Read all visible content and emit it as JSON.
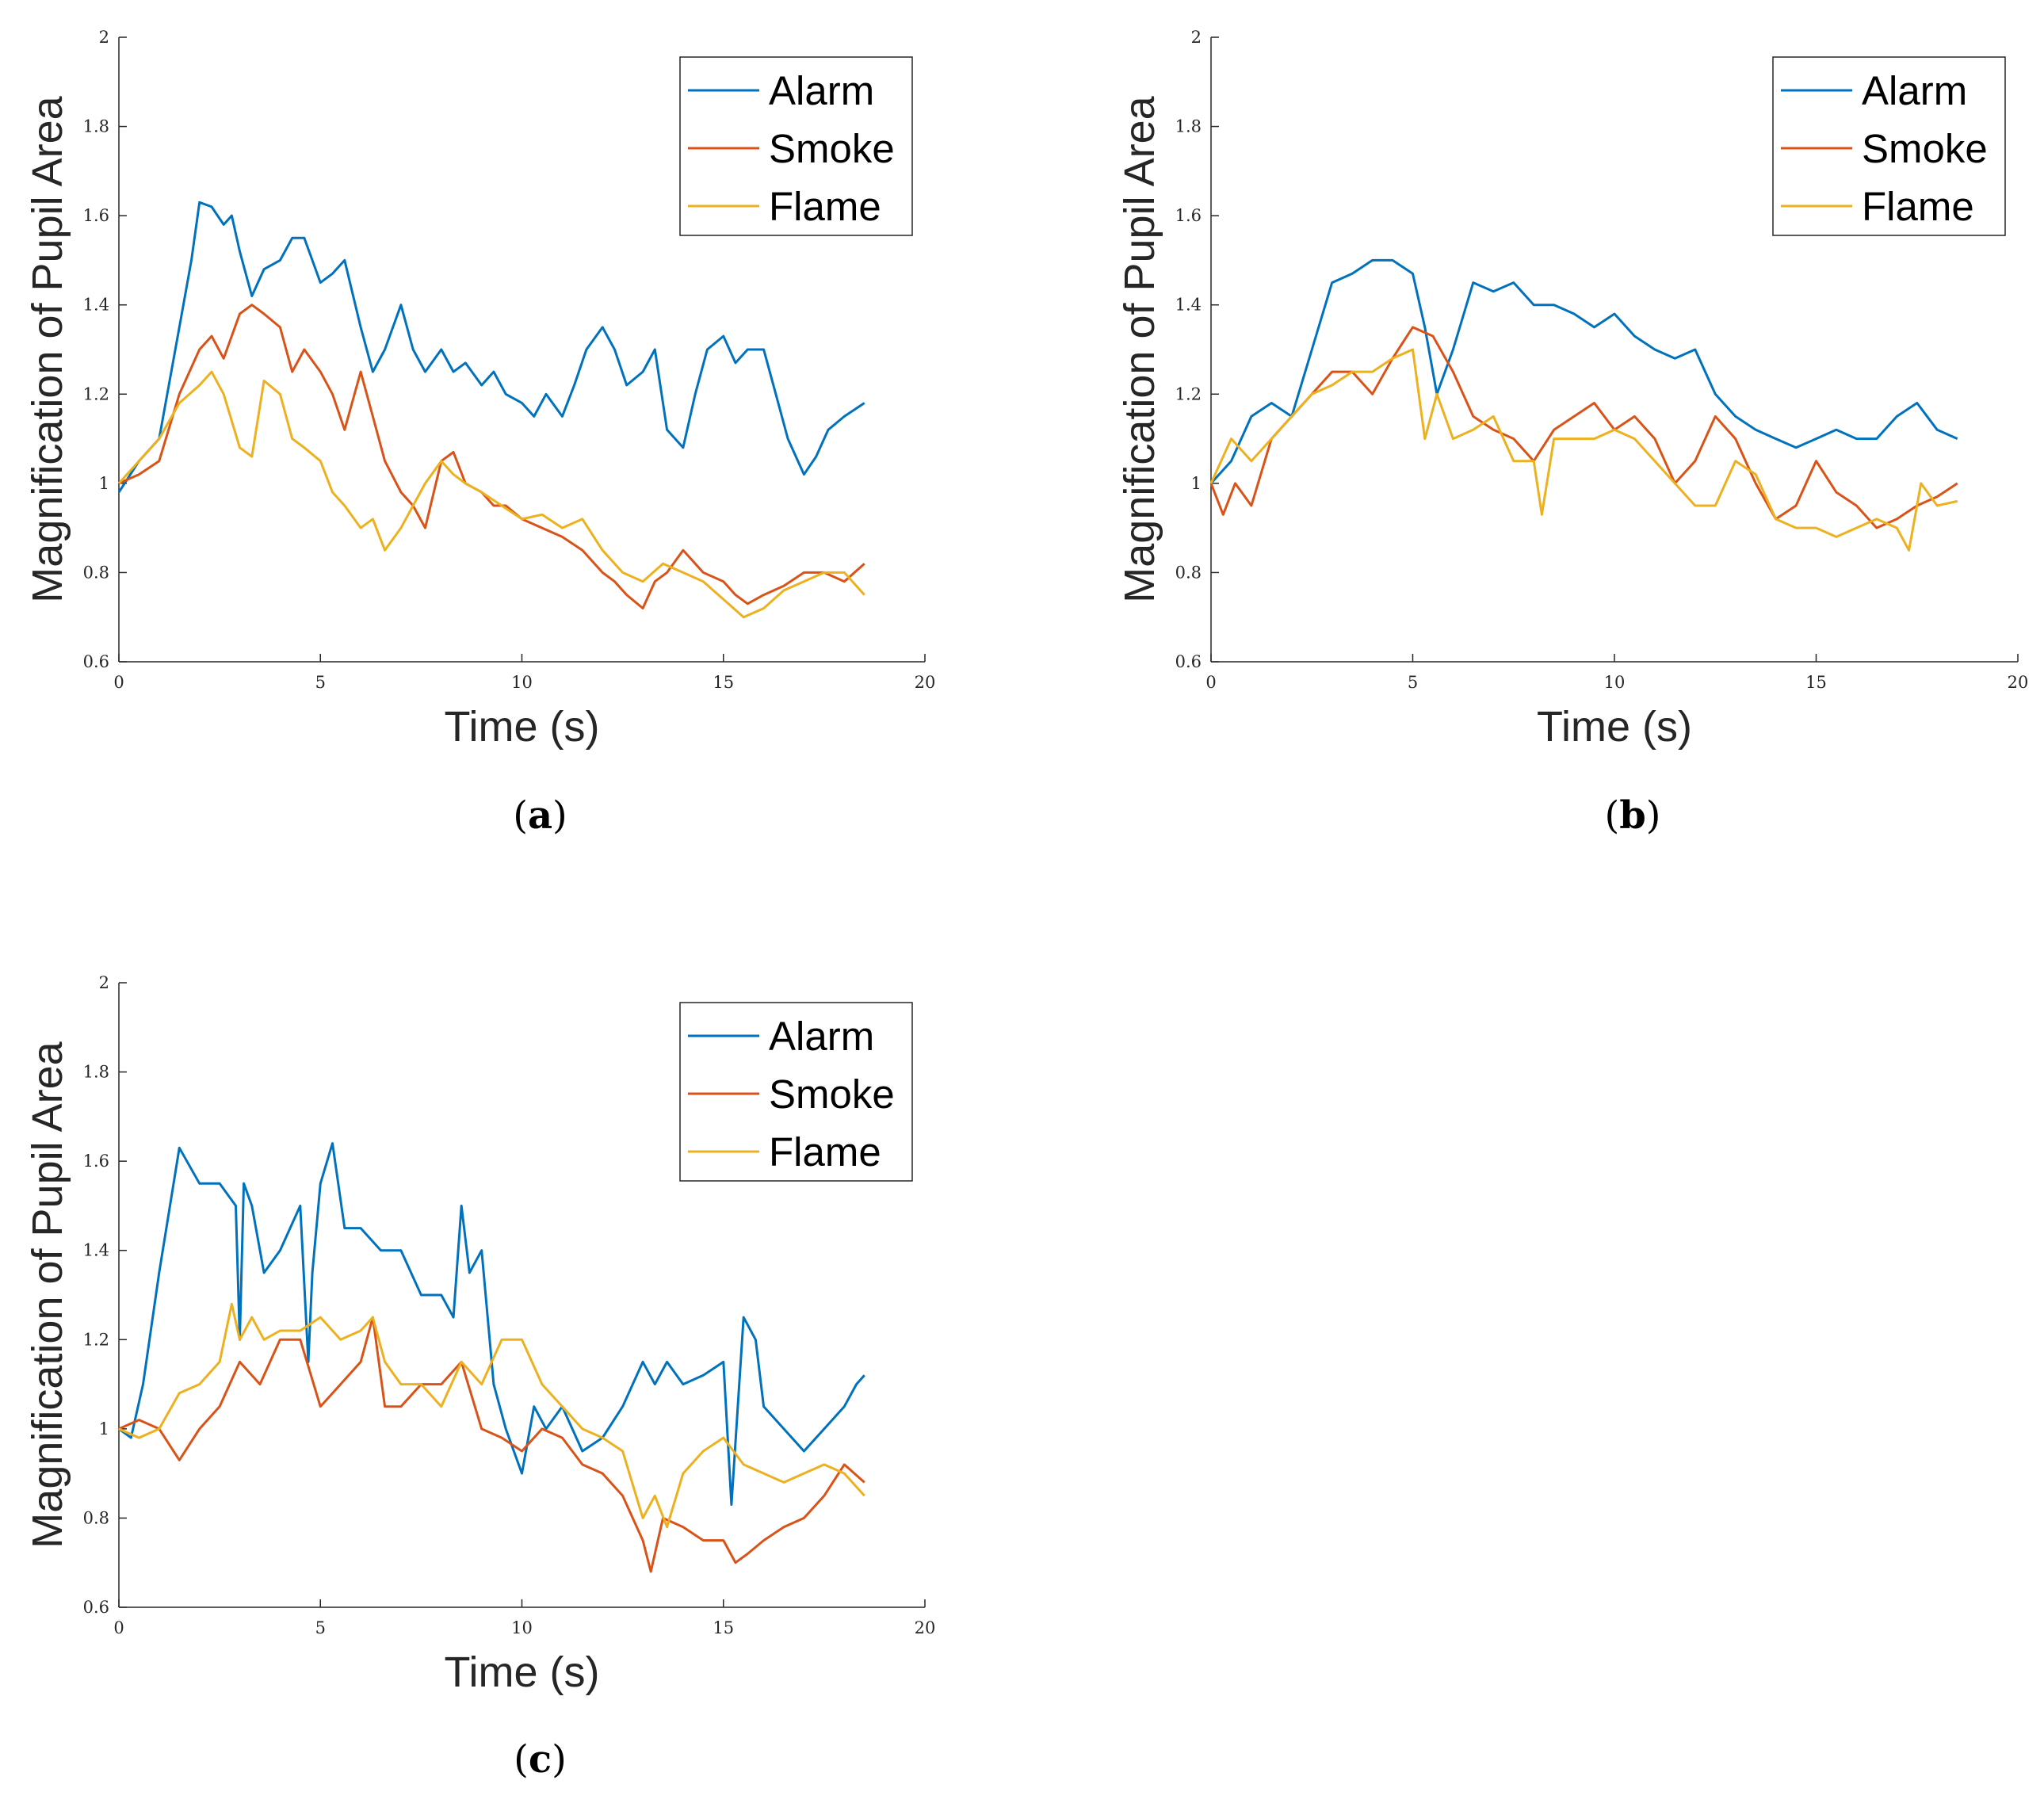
{
  "figure": {
    "colors": {
      "alarm": "#0072BD",
      "smoke": "#D95319",
      "flame": "#EDB120",
      "axis": "#262626"
    }
  },
  "chart_data": [
    {
      "panel": "a",
      "type": "line",
      "panel_label": {
        "open": "(",
        "letter": "a",
        "close": ")"
      },
      "xlabel": "Time (s)",
      "ylabel": "Magnification of Pupil Area",
      "xlim": [
        0,
        20
      ],
      "ylim": [
        0.6,
        2
      ],
      "xticks": [
        0,
        5,
        10,
        15,
        20
      ],
      "yticks": [
        0.6,
        0.8,
        1,
        1.2,
        1.4,
        1.6,
        1.8,
        2
      ],
      "legend": {
        "location": "top-right",
        "entries": [
          "Alarm",
          "Smoke",
          "Flame"
        ]
      },
      "series": [
        {
          "name": "Alarm",
          "color": "#0072BD",
          "x": [
            0,
            0.5,
            1,
            1.5,
            1.8,
            2,
            2.3,
            2.6,
            2.8,
            3,
            3.3,
            3.6,
            4,
            4.3,
            4.6,
            5,
            5.3,
            5.6,
            6,
            6.3,
            6.6,
            7,
            7.3,
            7.6,
            8,
            8.3,
            8.6,
            9,
            9.3,
            9.6,
            10,
            10.3,
            10.6,
            11,
            11.3,
            11.6,
            12,
            12.3,
            12.6,
            13,
            13.3,
            13.6,
            14,
            14.3,
            14.6,
            15,
            15.3,
            15.6,
            16,
            16.3,
            16.6,
            17,
            17.3,
            17.6,
            18,
            18.5
          ],
          "y": [
            0.98,
            1.05,
            1.1,
            1.35,
            1.5,
            1.63,
            1.62,
            1.58,
            1.6,
            1.52,
            1.42,
            1.48,
            1.5,
            1.55,
            1.55,
            1.45,
            1.47,
            1.5,
            1.35,
            1.25,
            1.3,
            1.4,
            1.3,
            1.25,
            1.3,
            1.25,
            1.27,
            1.22,
            1.25,
            1.2,
            1.18,
            1.15,
            1.2,
            1.15,
            1.22,
            1.3,
            1.35,
            1.3,
            1.22,
            1.25,
            1.3,
            1.12,
            1.08,
            1.2,
            1.3,
            1.33,
            1.27,
            1.3,
            1.3,
            1.2,
            1.1,
            1.02,
            1.06,
            1.12,
            1.15,
            1.18
          ]
        },
        {
          "name": "Smoke",
          "color": "#D95319",
          "x": [
            0,
            0.5,
            1,
            1.5,
            2,
            2.3,
            2.6,
            3,
            3.3,
            3.6,
            4,
            4.3,
            4.6,
            5,
            5.3,
            5.6,
            6,
            6.3,
            6.6,
            7,
            7.3,
            7.6,
            8,
            8.3,
            8.6,
            9,
            9.3,
            9.6,
            10,
            10.5,
            11,
            11.5,
            12,
            12.3,
            12.6,
            13,
            13.3,
            13.6,
            14,
            14.5,
            15,
            15.3,
            15.6,
            16,
            16.5,
            17,
            17.5,
            18,
            18.5
          ],
          "y": [
            1.0,
            1.02,
            1.05,
            1.2,
            1.3,
            1.33,
            1.28,
            1.38,
            1.4,
            1.38,
            1.35,
            1.25,
            1.3,
            1.25,
            1.2,
            1.12,
            1.25,
            1.15,
            1.05,
            0.98,
            0.95,
            0.9,
            1.05,
            1.07,
            1.0,
            0.98,
            0.95,
            0.95,
            0.92,
            0.9,
            0.88,
            0.85,
            0.8,
            0.78,
            0.75,
            0.72,
            0.78,
            0.8,
            0.85,
            0.8,
            0.78,
            0.75,
            0.73,
            0.75,
            0.77,
            0.8,
            0.8,
            0.78,
            0.82
          ]
        },
        {
          "name": "Flame",
          "color": "#EDB120",
          "x": [
            0,
            0.5,
            1,
            1.5,
            2,
            2.3,
            2.6,
            3,
            3.3,
            3.6,
            4,
            4.3,
            4.6,
            5,
            5.3,
            5.6,
            6,
            6.3,
            6.6,
            7,
            7.3,
            7.6,
            8,
            8.3,
            8.6,
            9,
            9.5,
            10,
            10.5,
            11,
            11.5,
            12,
            12.5,
            13,
            13.5,
            14,
            14.5,
            15,
            15.5,
            16,
            16.5,
            17,
            17.5,
            18,
            18.5
          ],
          "y": [
            1.0,
            1.05,
            1.1,
            1.18,
            1.22,
            1.25,
            1.2,
            1.08,
            1.06,
            1.23,
            1.2,
            1.1,
            1.08,
            1.05,
            0.98,
            0.95,
            0.9,
            0.92,
            0.85,
            0.9,
            0.95,
            1.0,
            1.05,
            1.02,
            1.0,
            0.98,
            0.95,
            0.92,
            0.93,
            0.9,
            0.92,
            0.85,
            0.8,
            0.78,
            0.82,
            0.8,
            0.78,
            0.74,
            0.7,
            0.72,
            0.76,
            0.78,
            0.8,
            0.8,
            0.75
          ]
        }
      ]
    },
    {
      "panel": "b",
      "type": "line",
      "panel_label": {
        "open": "(",
        "letter": "b",
        "close": ")"
      },
      "xlabel": "Time (s)",
      "ylabel": "Magnification of Pupil Area",
      "xlim": [
        0,
        20
      ],
      "ylim": [
        0.6,
        2
      ],
      "xticks": [
        0,
        5,
        10,
        15,
        20
      ],
      "yticks": [
        0.6,
        0.8,
        1,
        1.2,
        1.4,
        1.6,
        1.8,
        2
      ],
      "legend": {
        "location": "top-right",
        "entries": [
          "Alarm",
          "Smoke",
          "Flame"
        ]
      },
      "series": [
        {
          "name": "Alarm",
          "color": "#0072BD",
          "x": [
            0,
            0.5,
            1,
            1.5,
            2,
            2.5,
            3,
            3.5,
            4,
            4.5,
            5,
            5.3,
            5.6,
            6,
            6.5,
            7,
            7.5,
            8,
            8.5,
            9,
            9.5,
            10,
            10.5,
            11,
            11.5,
            12,
            12.5,
            13,
            13.5,
            14,
            14.5,
            15,
            15.5,
            16,
            16.5,
            17,
            17.5,
            18,
            18.5
          ],
          "y": [
            1.0,
            1.05,
            1.15,
            1.18,
            1.15,
            1.3,
            1.45,
            1.47,
            1.5,
            1.5,
            1.47,
            1.35,
            1.2,
            1.3,
            1.45,
            1.43,
            1.45,
            1.4,
            1.4,
            1.38,
            1.35,
            1.38,
            1.33,
            1.3,
            1.28,
            1.3,
            1.2,
            1.15,
            1.12,
            1.1,
            1.08,
            1.1,
            1.12,
            1.1,
            1.1,
            1.15,
            1.18,
            1.12,
            1.1
          ]
        },
        {
          "name": "Smoke",
          "color": "#D95319",
          "x": [
            0,
            0.3,
            0.6,
            1,
            1.5,
            2,
            2.5,
            3,
            3.5,
            4,
            4.5,
            5,
            5.5,
            6,
            6.5,
            7,
            7.5,
            8,
            8.5,
            9,
            9.5,
            10,
            10.5,
            11,
            11.5,
            12,
            12.5,
            13,
            13.5,
            14,
            14.5,
            15,
            15.5,
            16,
            16.5,
            17,
            17.5,
            18,
            18.5
          ],
          "y": [
            1.0,
            0.93,
            1.0,
            0.95,
            1.1,
            1.15,
            1.2,
            1.25,
            1.25,
            1.2,
            1.28,
            1.35,
            1.33,
            1.25,
            1.15,
            1.12,
            1.1,
            1.05,
            1.12,
            1.15,
            1.18,
            1.12,
            1.15,
            1.1,
            1.0,
            1.05,
            1.15,
            1.1,
            1.0,
            0.92,
            0.95,
            1.05,
            0.98,
            0.95,
            0.9,
            0.92,
            0.95,
            0.97,
            1.0
          ]
        },
        {
          "name": "Flame",
          "color": "#EDB120",
          "x": [
            0,
            0.5,
            1,
            1.5,
            2,
            2.5,
            3,
            3.5,
            4,
            4.5,
            5,
            5.3,
            5.6,
            6,
            6.5,
            7,
            7.5,
            8,
            8.2,
            8.5,
            9,
            9.5,
            10,
            10.5,
            11,
            11.5,
            12,
            12.5,
            13,
            13.5,
            14,
            14.5,
            15,
            15.5,
            16,
            16.5,
            17,
            17.3,
            17.6,
            18,
            18.5
          ],
          "y": [
            1.0,
            1.1,
            1.05,
            1.1,
            1.15,
            1.2,
            1.22,
            1.25,
            1.25,
            1.28,
            1.3,
            1.1,
            1.2,
            1.1,
            1.12,
            1.15,
            1.05,
            1.05,
            0.93,
            1.1,
            1.1,
            1.1,
            1.12,
            1.1,
            1.05,
            1.0,
            0.95,
            0.95,
            1.05,
            1.02,
            0.92,
            0.9,
            0.9,
            0.88,
            0.9,
            0.92,
            0.9,
            0.85,
            1.0,
            0.95,
            0.96
          ]
        }
      ]
    },
    {
      "panel": "c",
      "type": "line",
      "panel_label": {
        "open": "(",
        "letter": "c",
        "close": ")"
      },
      "xlabel": "Time (s)",
      "ylabel": "Magnification of Pupil Area",
      "xlim": [
        0,
        20
      ],
      "ylim": [
        0.6,
        2
      ],
      "xticks": [
        0,
        5,
        10,
        15,
        20
      ],
      "yticks": [
        0.6,
        0.8,
        1,
        1.2,
        1.4,
        1.6,
        1.8,
        2
      ],
      "legend": {
        "location": "top-right",
        "entries": [
          "Alarm",
          "Smoke",
          "Flame"
        ]
      },
      "series": [
        {
          "name": "Alarm",
          "color": "#0072BD",
          "x": [
            0,
            0.3,
            0.6,
            1,
            1.5,
            2,
            2.5,
            2.9,
            3,
            3.1,
            3.3,
            3.6,
            4,
            4.5,
            4.7,
            4.8,
            5,
            5.3,
            5.6,
            6,
            6.5,
            7,
            7.5,
            8,
            8.3,
            8.5,
            8.7,
            9,
            9.3,
            9.6,
            10,
            10.3,
            10.6,
            11,
            11.5,
            12,
            12.5,
            13,
            13.3,
            13.6,
            14,
            14.5,
            15,
            15.2,
            15.5,
            15.8,
            16,
            16.5,
            17,
            17.5,
            18,
            18.3,
            18.5
          ],
          "y": [
            1.0,
            0.98,
            1.1,
            1.35,
            1.63,
            1.55,
            1.55,
            1.5,
            1.2,
            1.55,
            1.5,
            1.35,
            1.4,
            1.5,
            1.15,
            1.35,
            1.55,
            1.64,
            1.45,
            1.45,
            1.4,
            1.4,
            1.3,
            1.3,
            1.25,
            1.5,
            1.35,
            1.4,
            1.1,
            1.0,
            0.9,
            1.05,
            1.0,
            1.05,
            0.95,
            0.98,
            1.05,
            1.15,
            1.1,
            1.15,
            1.1,
            1.12,
            1.15,
            0.83,
            1.25,
            1.2,
            1.05,
            1.0,
            0.95,
            1.0,
            1.05,
            1.1,
            1.12
          ]
        },
        {
          "name": "Smoke",
          "color": "#D95319",
          "x": [
            0,
            0.5,
            1,
            1.5,
            2,
            2.5,
            3,
            3.5,
            4,
            4.5,
            5,
            5.5,
            6,
            6.3,
            6.6,
            7,
            7.5,
            8,
            8.5,
            9,
            9.5,
            10,
            10.5,
            11,
            11.5,
            12,
            12.5,
            13,
            13.2,
            13.5,
            14,
            14.5,
            15,
            15.3,
            15.6,
            16,
            16.5,
            17,
            17.5,
            18,
            18.5
          ],
          "y": [
            1.0,
            1.02,
            1.0,
            0.93,
            1.0,
            1.05,
            1.15,
            1.1,
            1.2,
            1.2,
            1.05,
            1.1,
            1.15,
            1.25,
            1.05,
            1.05,
            1.1,
            1.1,
            1.15,
            1.0,
            0.98,
            0.95,
            1.0,
            0.98,
            0.92,
            0.9,
            0.85,
            0.75,
            0.68,
            0.8,
            0.78,
            0.75,
            0.75,
            0.7,
            0.72,
            0.75,
            0.78,
            0.8,
            0.85,
            0.92,
            0.88
          ]
        },
        {
          "name": "Flame",
          "color": "#EDB120",
          "x": [
            0,
            0.5,
            1,
            1.5,
            2,
            2.5,
            2.8,
            3,
            3.3,
            3.6,
            4,
            4.5,
            5,
            5.5,
            6,
            6.3,
            6.6,
            7,
            7.5,
            8,
            8.5,
            9,
            9.5,
            10,
            10.5,
            11,
            11.5,
            12,
            12.5,
            13,
            13.3,
            13.6,
            14,
            14.5,
            15,
            15.5,
            16,
            16.5,
            17,
            17.5,
            18,
            18.5
          ],
          "y": [
            1.0,
            0.98,
            1.0,
            1.08,
            1.1,
            1.15,
            1.28,
            1.2,
            1.25,
            1.2,
            1.22,
            1.22,
            1.25,
            1.2,
            1.22,
            1.25,
            1.15,
            1.1,
            1.1,
            1.05,
            1.15,
            1.1,
            1.2,
            1.2,
            1.1,
            1.05,
            1.0,
            0.98,
            0.95,
            0.8,
            0.85,
            0.78,
            0.9,
            0.95,
            0.98,
            0.92,
            0.9,
            0.88,
            0.9,
            0.92,
            0.9,
            0.85
          ]
        }
      ]
    }
  ]
}
